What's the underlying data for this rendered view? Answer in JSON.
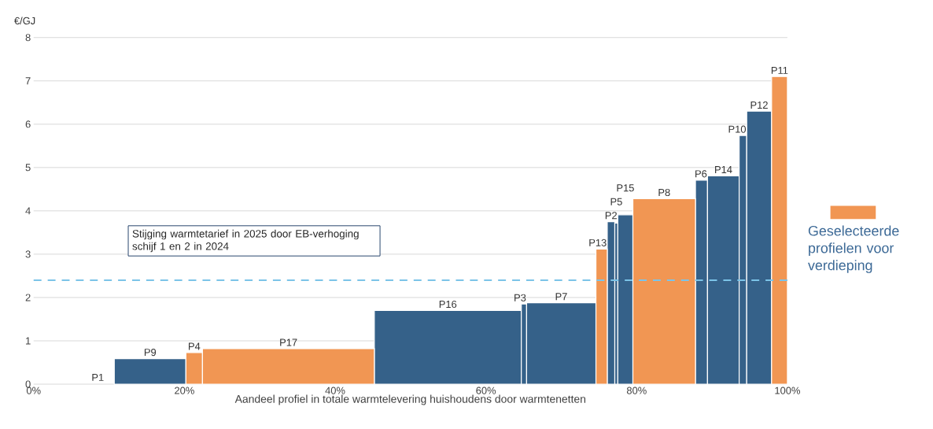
{
  "chart_data": {
    "type": "histogram",
    "xlabel": "Aandeel profiel in totale warmtelevering huishoudens door warmtenetten",
    "ylabel": "€/GJ",
    "bins": [
      10.7,
      20.2,
      22.4,
      45.2,
      64.7,
      65.4,
      74.6,
      76.1,
      77.1,
      77.5,
      79.5,
      87.8,
      89.4,
      93.6,
      94.6,
      97.9,
      100
    ],
    "series": [
      {
        "color": "#356189",
        "values": [
          0.59,
          null,
          null,
          1.7,
          1.85,
          1.88,
          null,
          3.75,
          3.72,
          3.91,
          null,
          4.71,
          4.81,
          5.74,
          6.3,
          null
        ]
      },
      {
        "name": "Geselecteerde profielen voor verdieping",
        "color": "#f19653",
        "values": [
          null,
          0.73,
          0.82,
          null,
          null,
          null,
          3.12,
          null,
          null,
          null,
          4.28,
          null,
          null,
          null,
          null,
          7.1
        ]
      }
    ],
    "xlim": [
      0,
      100
    ],
    "xticks": [
      {
        "value": 0,
        "label": "0%"
      },
      {
        "value": 20,
        "label": "20%"
      },
      {
        "value": 40,
        "label": "40%"
      },
      {
        "value": 60,
        "label": "60%"
      },
      {
        "value": 80,
        "label": "80%"
      },
      {
        "value": 100,
        "label": "100%"
      }
    ],
    "ylim": [
      0,
      8
    ],
    "yticks": [
      0,
      1,
      2,
      3,
      4,
      5,
      6,
      7,
      8
    ],
    "grid": "y",
    "legend": "right",
    "ref_lines": [
      {
        "axis": "y",
        "value": 2.4,
        "label": "Stijging warmtetarief in 2025 door EB-verhoging schijf 1 en 2 in 2024",
        "color": "#7cc4e8",
        "line_style": "dashed"
      }
    ],
    "annotations": [
      "P1",
      {
        "text": "P9",
        "x": 15.45,
        "y": 0.59
      },
      {
        "text": "P4",
        "x": 21.3,
        "y": 0.73
      },
      {
        "text": "P17",
        "x": 33.8,
        "y": 0.82
      },
      {
        "text": "P16",
        "x": 54.95,
        "y": 1.7
      },
      {
        "text": "P3",
        "x": 65.05,
        "y": 1.85
      },
      {
        "text": "P7",
        "x": 70.0,
        "y": 1.88
      },
      {
        "text": "P13",
        "x": 75.35,
        "y": 3.12
      },
      {
        "text": "P2",
        "x": 76.6,
        "y": 3.75
      },
      {
        "text": "P5",
        "x": 77.3,
        "y": 3.72
      },
      {
        "text": "P15",
        "x": 78.5,
        "y": 3.91
      },
      {
        "text": "P8",
        "x": 83.65,
        "y": 4.28
      },
      {
        "text": "P6",
        "x": 88.6,
        "y": 4.71
      },
      {
        "text": "P14",
        "x": 91.5,
        "y": 4.81
      },
      {
        "text": "P10",
        "x": 94.1,
        "y": 5.74
      },
      {
        "text": "P12",
        "x": 96.25,
        "y": 6.3
      },
      {
        "text": "P11",
        "x": 98.95,
        "y": 7.1
      }
    ]
  }
}
